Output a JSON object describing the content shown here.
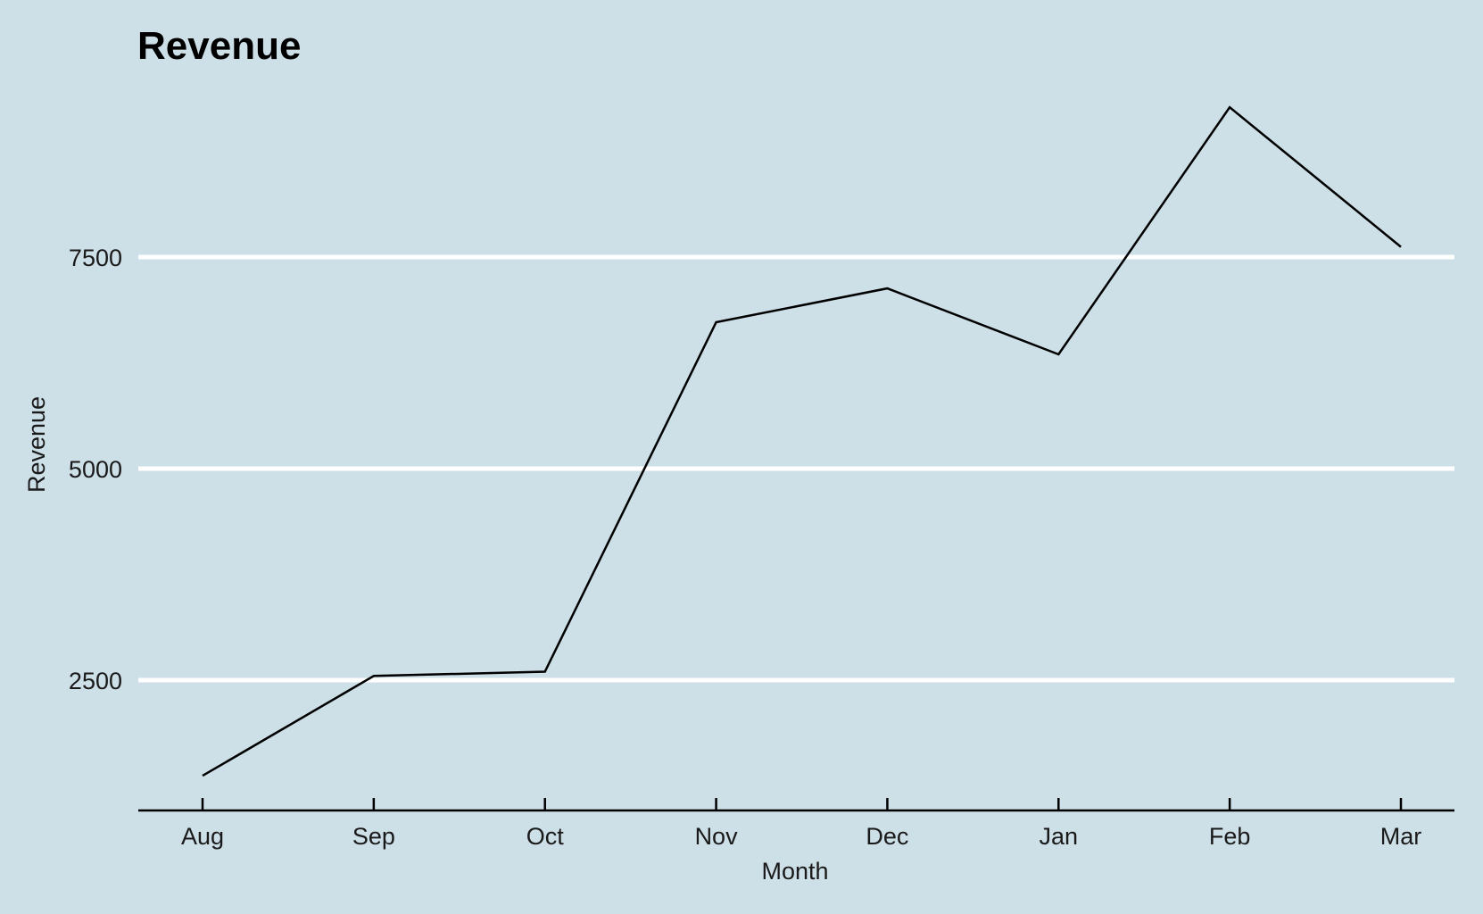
{
  "chart_data": {
    "type": "line",
    "title": "Revenue",
    "xlabel": "Month",
    "ylabel": "Revenue",
    "categories": [
      "Aug",
      "Sep",
      "Oct",
      "Nov",
      "Dec",
      "Jan",
      "Feb",
      "Mar"
    ],
    "series": [
      {
        "values": [
          1370,
          2550,
          2600,
          6730,
          7130,
          6350,
          9270,
          7620
        ]
      }
    ],
    "y_ticks": [
      2500,
      5000,
      7500
    ],
    "ylim": [
      1000,
      10000
    ],
    "grid": "horizontal major lines only",
    "legend": "none",
    "colors": {
      "background": "#cddfe7",
      "grid": "#ffffff",
      "line": "#000000"
    }
  }
}
